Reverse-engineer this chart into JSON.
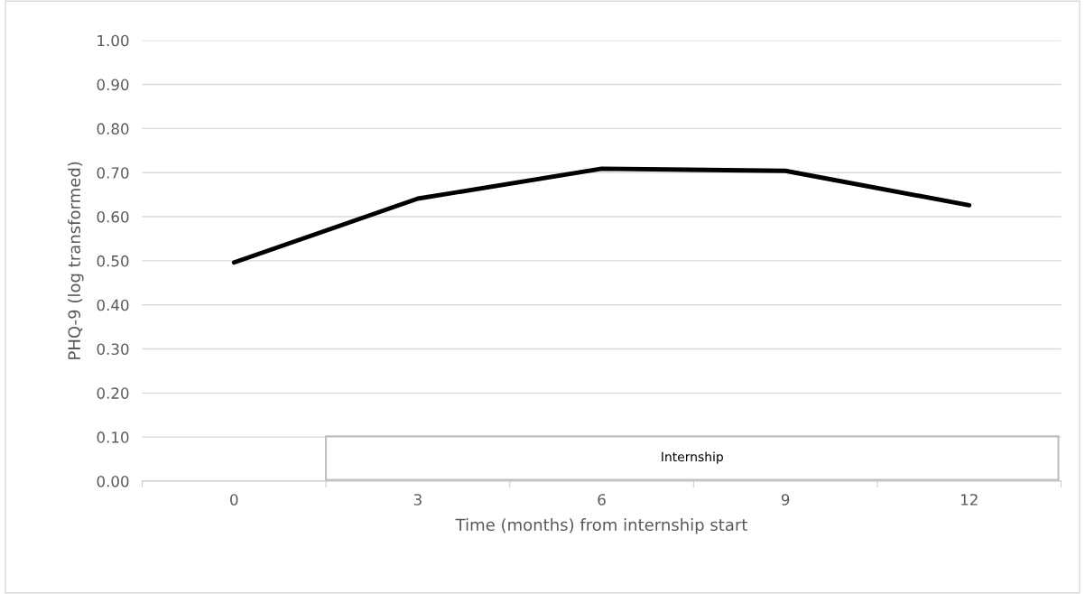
{
  "chart_data": {
    "type": "line",
    "xlabel": "Time (months) from internship start",
    "ylabel": "PHQ-9 (log transformed)",
    "categories": [
      "0",
      "3",
      "6",
      "9",
      "12"
    ],
    "series": [
      {
        "color": "#000000",
        "values": [
          0.496,
          0.641,
          0.709,
          0.704,
          0.626
        ]
      }
    ],
    "ylim": [
      0,
      1
    ],
    "yticks": [
      {
        "value": 0,
        "label": "0.00"
      },
      {
        "value": 0.1,
        "label": "0.10"
      },
      {
        "value": 0.2,
        "label": "0.20"
      },
      {
        "value": 0.3,
        "label": "0.30"
      },
      {
        "value": 0.4,
        "label": "0.40"
      },
      {
        "value": 0.5,
        "label": "0.50"
      },
      {
        "value": 0.6,
        "label": "0.60"
      },
      {
        "value": 0.7,
        "label": "0.70"
      },
      {
        "value": 0.8,
        "label": "0.80"
      },
      {
        "value": 0.9,
        "label": "0.90"
      },
      {
        "value": 1,
        "label": "1.00"
      }
    ],
    "grid": "y",
    "marker": "none",
    "line_style": "solid",
    "annotations": [
      "Internship"
    ]
  }
}
